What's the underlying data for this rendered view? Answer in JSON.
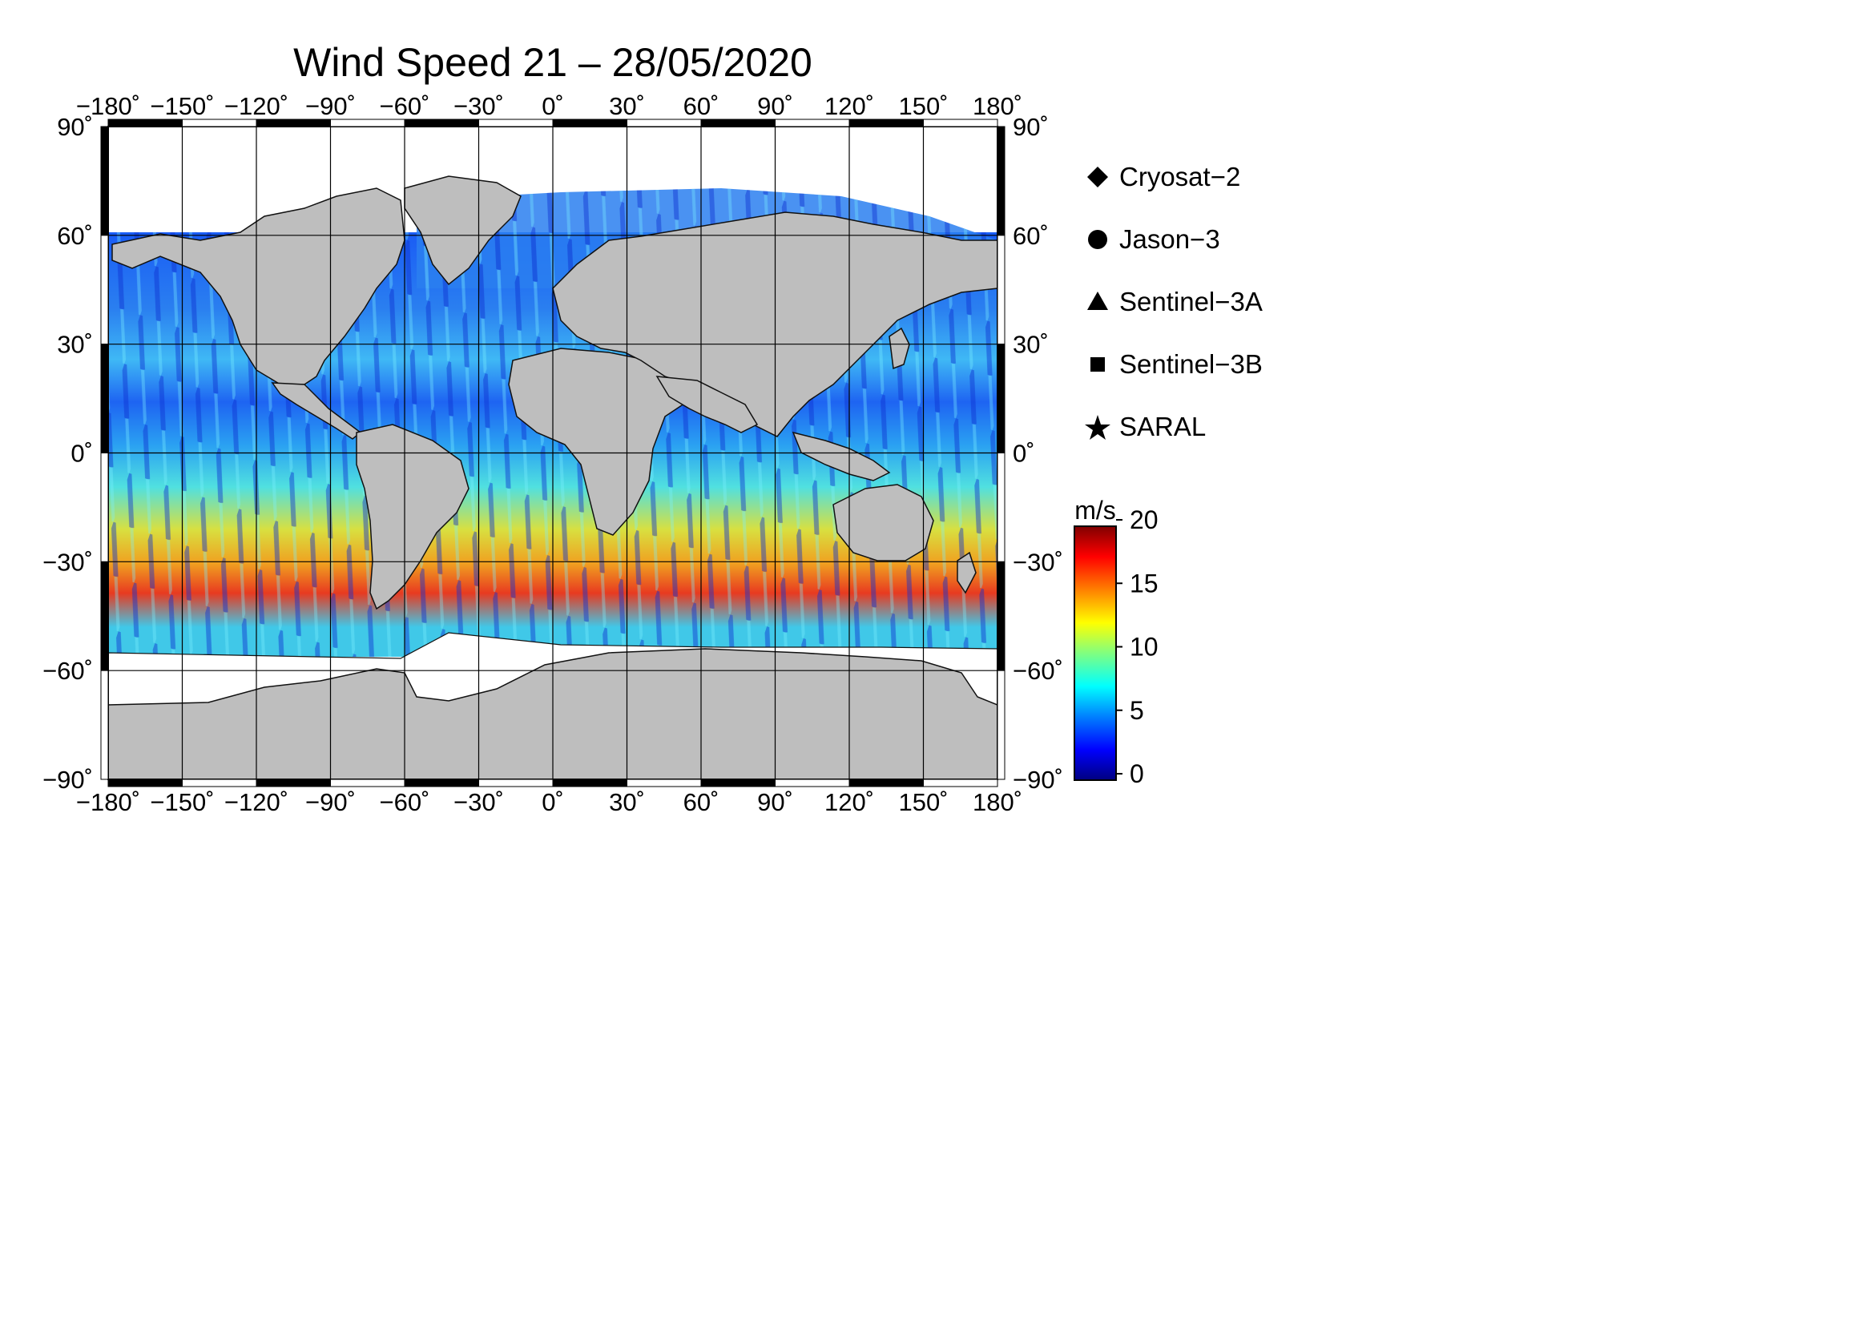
{
  "title": "Wind Speed 21 – 28/05/2020",
  "lon_ticks": [
    "−180˚",
    "−150˚",
    "−120˚",
    "−90˚",
    "−60˚",
    "−30˚",
    "0˚",
    "30˚",
    "60˚",
    "90˚",
    "120˚",
    "150˚",
    "180˚"
  ],
  "lat_ticks_left": [
    "90˚",
    "60˚",
    "30˚",
    "0˚",
    "−30˚",
    "−60˚",
    "−90˚"
  ],
  "lat_ticks_right": [
    "90˚",
    "60˚",
    "30˚",
    "0˚",
    "−30˚",
    "−60˚",
    "−90˚"
  ],
  "legend": [
    {
      "label": "Cryosat−2",
      "icon": "diamond-icon"
    },
    {
      "label": "Jason−3",
      "icon": "circle-icon"
    },
    {
      "label": "Sentinel−3A",
      "icon": "triangle-icon"
    },
    {
      "label": "Sentinel−3B",
      "icon": "square-icon"
    },
    {
      "label": "SARAL",
      "icon": "star-icon"
    }
  ],
  "colorbar": {
    "unit": "m/s",
    "ticks": [
      "0",
      "5",
      "10",
      "15",
      "20"
    ],
    "min": 0,
    "max": 20,
    "colors": [
      "#000080",
      "#0000ff",
      "#0080ff",
      "#00ffff",
      "#80ff80",
      "#ffff00",
      "#ff8000",
      "#ff0000",
      "#800000"
    ]
  },
  "colors": {
    "land": "#bebebe",
    "ice": "#ffffff",
    "frame": "#000000"
  }
}
